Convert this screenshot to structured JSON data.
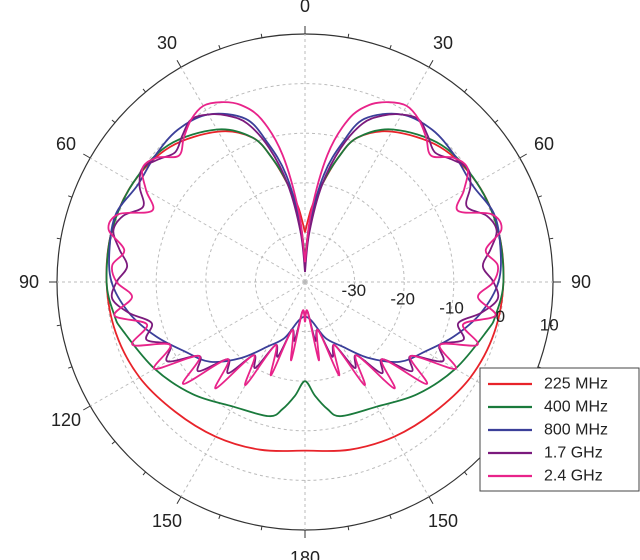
{
  "chart_data": {
    "type": "polar-line",
    "title": "",
    "angle_direction": "clockwise",
    "angle_zero": "top",
    "angle_tick_labels": [
      {
        "angle": 0,
        "label": "0"
      },
      {
        "angle": 30,
        "label": "30"
      },
      {
        "angle": -30,
        "label": "30"
      },
      {
        "angle": 60,
        "label": "60"
      },
      {
        "angle": -60,
        "label": "60"
      },
      {
        "angle": 90,
        "label": "90"
      },
      {
        "angle": -90,
        "label": "90"
      },
      {
        "angle": -120,
        "label": "120"
      },
      {
        "angle": 150,
        "label": "150"
      },
      {
        "angle": -150,
        "label": "150"
      },
      {
        "angle": 180,
        "label": "180"
      }
    ],
    "radial_axis": {
      "unit": "dB",
      "range": [
        -40,
        10
      ],
      "ticks": [
        -30,
        -20,
        -10,
        0,
        10
      ],
      "tick_labels": [
        "-30",
        "-20",
        "-10",
        "0",
        "10"
      ],
      "label_angle_deg": 100
    },
    "grid": true,
    "legend": {
      "placement": "bottom-right",
      "entries": [
        "225 MHz",
        "400 MHz",
        "800 MHz",
        "1.7 GHz",
        "2.4 GHz"
      ]
    },
    "series": [
      {
        "name": "225 MHz",
        "color": "#e8232a",
        "angles": [
          0,
          5,
          10,
          15,
          20,
          30,
          45,
          60,
          75,
          90,
          105,
          120,
          135,
          150,
          165,
          180,
          195,
          210,
          225,
          240,
          255,
          270,
          285,
          300,
          315,
          330,
          340,
          345,
          350,
          355,
          360
        ],
        "values": [
          -30,
          -25,
          -20,
          -14,
          -9,
          -5,
          -1.5,
          0,
          0.3,
          0,
          -0.5,
          -1.5,
          -3,
          -4,
          -5,
          -6,
          -5,
          -4,
          -3,
          -1.5,
          -0.5,
          0,
          0.3,
          0,
          -1.5,
          -5,
          -9,
          -14,
          -20,
          -25,
          -30
        ]
      },
      {
        "name": "400 MHz",
        "color": "#1a7a3c",
        "angles": [
          0,
          5,
          10,
          15,
          20,
          30,
          45,
          60,
          75,
          90,
          100,
          105,
          120,
          135,
          150,
          165,
          170,
          175,
          180,
          185,
          190,
          195,
          210,
          225,
          240,
          255,
          260,
          270,
          285,
          300,
          315,
          330,
          340,
          345,
          350,
          355,
          360
        ],
        "values": [
          -35,
          -27,
          -20,
          -14,
          -9,
          -4.5,
          -1,
          0,
          0.3,
          0,
          -1,
          -2,
          -5,
          -8,
          -11,
          -12,
          -14,
          -17,
          -20,
          -17,
          -14,
          -12,
          -11,
          -8,
          -5,
          -2,
          -1,
          0,
          0.3,
          0,
          -1,
          -4.5,
          -9,
          -14,
          -20,
          -27,
          -35
        ]
      },
      {
        "name": "800 MHz",
        "color": "#3b3f99",
        "angles": [
          0,
          5,
          10,
          15,
          20,
          30,
          40,
          50,
          60,
          70,
          80,
          90,
          100,
          110,
          120,
          130,
          140,
          150,
          160,
          170,
          180,
          190,
          200,
          210,
          220,
          230,
          240,
          250,
          260,
          270,
          280,
          290,
          300,
          310,
          320,
          330,
          340,
          345,
          350,
          355,
          360
        ],
        "values": [
          -37,
          -28,
          -18,
          -11,
          -5,
          -1,
          0,
          -0.5,
          -1,
          0.5,
          0,
          -1,
          -4,
          -8,
          -12,
          -15,
          -20,
          -25,
          -28,
          -32,
          -33,
          -32,
          -28,
          -25,
          -20,
          -15,
          -12,
          -8,
          -4,
          -1,
          0,
          0.5,
          -1,
          -0.5,
          0,
          -1,
          -5,
          -11,
          -18,
          -28,
          -37
        ]
      },
      {
        "name": "1.7 GHz",
        "color": "#7b1a7d",
        "angles": [
          0,
          5,
          10,
          15,
          20,
          25,
          30,
          35,
          40,
          45,
          50,
          55,
          60,
          65,
          70,
          75,
          80,
          85,
          90,
          95,
          100,
          105,
          110,
          115,
          120,
          125,
          130,
          135,
          140,
          145,
          150,
          155,
          160,
          165,
          170,
          175,
          180,
          185,
          190,
          195,
          200,
          205,
          210,
          215,
          220,
          225,
          230,
          235,
          240,
          245,
          250,
          255,
          260,
          265,
          270,
          275,
          280,
          285,
          290,
          295,
          300,
          305,
          310,
          315,
          320,
          325,
          330,
          335,
          340,
          345,
          350,
          355,
          360
        ],
        "values": [
          -38,
          -30,
          -20,
          -12,
          -6,
          -3,
          -1,
          0,
          -1.5,
          -3,
          -1.5,
          0,
          -1.5,
          -4,
          -1,
          0,
          -2,
          -4,
          -2,
          -1,
          -4,
          -8,
          -6,
          -10,
          -8,
          -14,
          -12,
          -18,
          -16,
          -22,
          -20,
          -26,
          -24,
          -30,
          -28,
          -34,
          -33,
          -34,
          -28,
          -30,
          -24,
          -26,
          -20,
          -22,
          -16,
          -18,
          -12,
          -14,
          -8,
          -10,
          -6,
          -8,
          -4,
          -1,
          -2,
          -4,
          -2,
          0,
          -1,
          -4,
          -1.5,
          0,
          -1.5,
          -3,
          -1.5,
          0,
          -1,
          -3,
          -6,
          -12,
          -20,
          -30,
          -38
        ]
      },
      {
        "name": "2.4 GHz",
        "color": "#e8238a",
        "angles": [
          0,
          5,
          10,
          15,
          20,
          25,
          30,
          35,
          40,
          45,
          50,
          55,
          60,
          65,
          70,
          75,
          80,
          85,
          90,
          95,
          100,
          105,
          110,
          115,
          120,
          125,
          130,
          135,
          140,
          145,
          150,
          155,
          160,
          165,
          170,
          175,
          180,
          185,
          190,
          195,
          200,
          205,
          210,
          215,
          220,
          225,
          230,
          235,
          240,
          245,
          250,
          255,
          260,
          265,
          270,
          275,
          280,
          285,
          290,
          295,
          300,
          305,
          310,
          315,
          320,
          325,
          330,
          335,
          340,
          345,
          350,
          355,
          360
        ],
        "values": [
          -36,
          -26,
          -14,
          -6,
          -2,
          0,
          1,
          0,
          -2,
          -4,
          -1,
          0,
          -3,
          -6,
          0,
          1,
          -3,
          -1,
          -2,
          -5,
          -1,
          -7,
          -3,
          -10,
          -5,
          -14,
          -8,
          -18,
          -12,
          -22,
          -16,
          -26,
          -20,
          -30,
          -24,
          -34,
          -32,
          -34,
          -24,
          -30,
          -20,
          -26,
          -16,
          -22,
          -12,
          -18,
          -8,
          -14,
          -5,
          -10,
          -3,
          -7,
          -1,
          -5,
          -2,
          -1,
          -3,
          1,
          0,
          -6,
          -3,
          0,
          -1,
          -4,
          -2,
          0,
          1,
          0,
          -2,
          -6,
          -14,
          -26,
          -36
        ]
      }
    ]
  }
}
